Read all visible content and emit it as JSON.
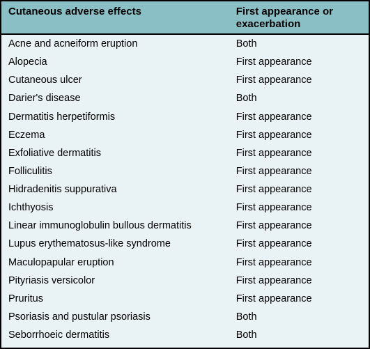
{
  "table": {
    "header_bg": "#8abfc5",
    "body_bg": "#e9f2f4",
    "border_color": "#000000",
    "header_fontsize": 15,
    "body_fontsize": 14.5,
    "columns": [
      "Cutaneous adverse effects",
      "First appearance or exacerbation"
    ],
    "rows": [
      [
        "Acne and acneiform eruption",
        "Both"
      ],
      [
        "Alopecia",
        "First appearance"
      ],
      [
        "Cutaneous ulcer",
        "First appearance"
      ],
      [
        "Darier's disease",
        "Both"
      ],
      [
        "Dermatitis herpetiformis",
        "First appearance"
      ],
      [
        "Eczema",
        "First appearance"
      ],
      [
        "Exfoliative dermatitis",
        "First appearance"
      ],
      [
        "Folliculitis",
        "First appearance"
      ],
      [
        "Hidradenitis suppurativa",
        "First appearance"
      ],
      [
        "Ichthyosis",
        "First appearance"
      ],
      [
        "Linear immunoglobulin bullous dermatitis",
        "First appearance"
      ],
      [
        "Lupus erythematosus-like syndrome",
        "First appearance"
      ],
      [
        "Maculopapular eruption",
        "First appearance"
      ],
      [
        "Pityriasis versicolor",
        "First appearance"
      ],
      [
        "Pruritus",
        "First appearance"
      ],
      [
        "Psoriasis and pustular psoriasis",
        "Both"
      ],
      [
        "Seborrhoeic dermatitis",
        "Both"
      ]
    ]
  }
}
